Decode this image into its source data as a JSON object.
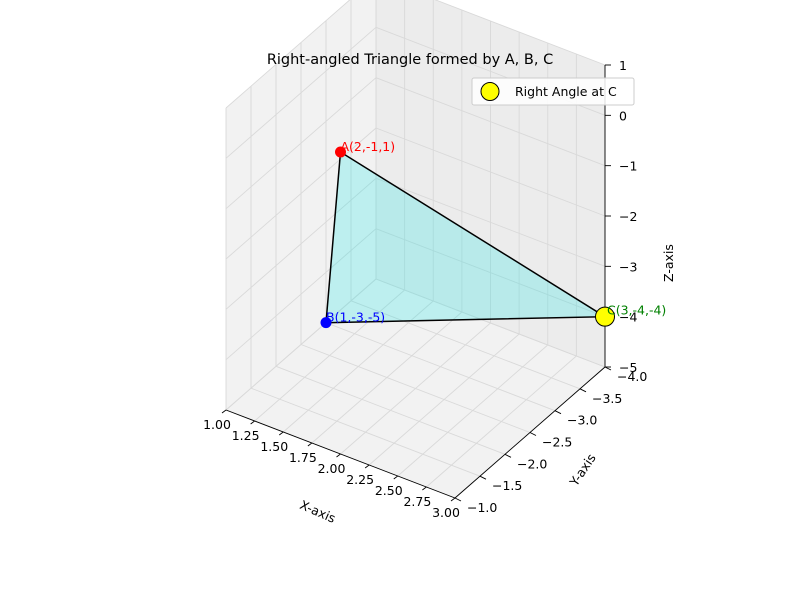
{
  "chart_data": {
    "type": "scatter",
    "subtype": "3d-triangle",
    "title": "Right-angled Triangle formed by A, B, C",
    "xlabel": "X-axis",
    "ylabel": "Y-axis",
    "zlabel": "Z-axis",
    "xlim": [
      1.0,
      3.0
    ],
    "ylim": [
      -4.0,
      -1.0
    ],
    "zlim": [
      -5,
      1
    ],
    "xticks": [
      "1.00",
      "1.25",
      "1.50",
      "1.75",
      "2.00",
      "2.25",
      "2.50",
      "2.75",
      "3.00"
    ],
    "yticks": [
      "−4.0",
      "−3.5",
      "−3.0",
      "−2.5",
      "−2.0",
      "−1.5",
      "−1.0"
    ],
    "zticks": [
      "−5",
      "−4",
      "−3",
      "−2",
      "−1",
      "0",
      "1"
    ],
    "grid": true,
    "legend": {
      "position": "top-right",
      "entries": [
        "Right Angle at C"
      ]
    },
    "points": [
      {
        "name": "A",
        "x": 2,
        "y": -1,
        "z": 1,
        "label": "A(2,-1,1)",
        "color": "#ff0000"
      },
      {
        "name": "B",
        "x": 1,
        "y": -3,
        "z": -5,
        "label": "B(1,-3,-5)",
        "color": "#0000ff"
      },
      {
        "name": "C",
        "x": 3,
        "y": -4,
        "z": -4,
        "label": "C(3,-4,-4)",
        "color": "#008000",
        "marker_color": "#ffff00"
      }
    ],
    "triangle_fill": "#00e5e5",
    "triangle_edge": "#000000"
  }
}
